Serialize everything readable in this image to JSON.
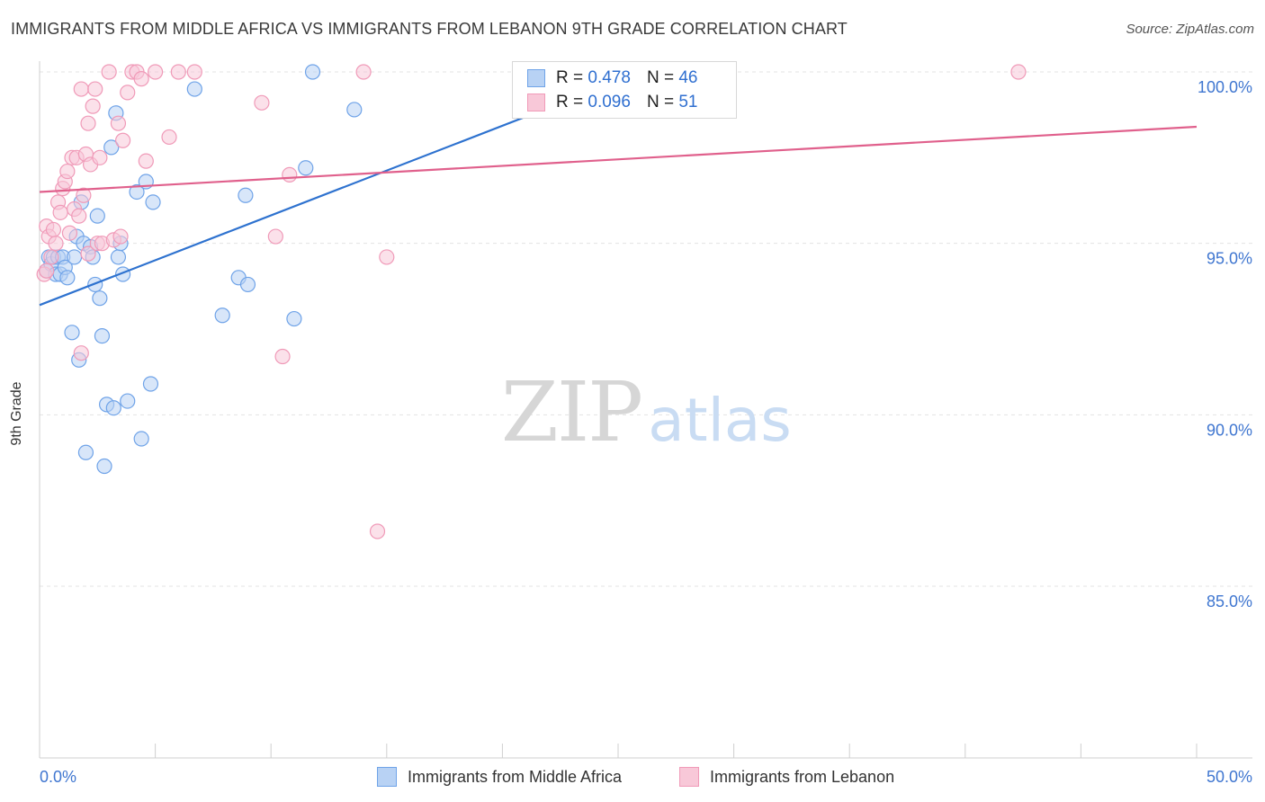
{
  "title": "IMMIGRANTS FROM MIDDLE AFRICA VS IMMIGRANTS FROM LEBANON 9TH GRADE CORRELATION CHART",
  "source": "Source: ZipAtlas.com",
  "watermark": {
    "zip": "ZIP",
    "atlas": "atlas"
  },
  "legend": {
    "r_label": "R =",
    "n_label": "N =",
    "rows": [
      {
        "r": "0.478",
        "n": "46"
      },
      {
        "r": "0.096",
        "n": "51"
      }
    ]
  },
  "chart_data": {
    "type": "scatter",
    "title": "IMMIGRANTS FROM MIDDLE AFRICA VS IMMIGRANTS FROM LEBANON 9TH GRADE CORRELATION CHART",
    "xlabel": "",
    "ylabel": "9th Grade",
    "xlim": [
      0,
      50
    ],
    "ylim": [
      80.5,
      100.8
    ],
    "x_tick_labels": [
      "0.0%",
      "50.0%"
    ],
    "y_ticks": [
      {
        "value": 100,
        "label": "100.0%"
      },
      {
        "value": 95,
        "label": "95.0%"
      },
      {
        "value": 90,
        "label": "90.0%"
      },
      {
        "value": 85,
        "label": "85.0%"
      }
    ],
    "grid": true,
    "legend_position": "bottom",
    "series": [
      {
        "name": "Immigrants from Middle Africa",
        "color": "#6fa3e8",
        "line_color": "#2e72cf",
        "fill": "#b8d2f4",
        "trend": {
          "x0": 0,
          "y0": 93.2,
          "x1": 26,
          "y1": 100.0
        },
        "points": [
          [
            0.3,
            94.2
          ],
          [
            0.4,
            94.6
          ],
          [
            0.5,
            94.4
          ],
          [
            0.6,
            94.6
          ],
          [
            0.7,
            94.1
          ],
          [
            0.8,
            94.6
          ],
          [
            0.9,
            94.1
          ],
          [
            1.0,
            94.6
          ],
          [
            1.1,
            94.3
          ],
          [
            1.2,
            94.0
          ],
          [
            1.4,
            92.4
          ],
          [
            1.5,
            94.6
          ],
          [
            1.6,
            95.2
          ],
          [
            1.8,
            96.2
          ],
          [
            1.7,
            91.6
          ],
          [
            1.9,
            95.0
          ],
          [
            2.0,
            88.9
          ],
          [
            2.2,
            94.9
          ],
          [
            2.3,
            94.6
          ],
          [
            2.4,
            93.8
          ],
          [
            2.5,
            95.8
          ],
          [
            2.6,
            93.4
          ],
          [
            2.7,
            92.3
          ],
          [
            2.8,
            88.5
          ],
          [
            2.9,
            90.3
          ],
          [
            3.1,
            97.8
          ],
          [
            3.2,
            90.2
          ],
          [
            3.3,
            98.8
          ],
          [
            3.4,
            94.6
          ],
          [
            3.5,
            95.0
          ],
          [
            3.6,
            94.1
          ],
          [
            3.8,
            90.4
          ],
          [
            4.2,
            96.5
          ],
          [
            4.4,
            89.3
          ],
          [
            4.6,
            96.8
          ],
          [
            4.8,
            90.9
          ],
          [
            4.9,
            96.2
          ],
          [
            6.7,
            99.5
          ],
          [
            7.9,
            92.9
          ],
          [
            8.6,
            94.0
          ],
          [
            8.9,
            96.4
          ],
          [
            9.0,
            93.8
          ],
          [
            11.0,
            92.8
          ],
          [
            11.5,
            97.2
          ],
          [
            11.8,
            100.0
          ],
          [
            13.6,
            98.9
          ]
        ]
      },
      {
        "name": "Immigrants from Lebanon",
        "color": "#f09ab8",
        "line_color": "#e0608c",
        "fill": "#f8c8d8",
        "trend": {
          "x0": 0,
          "y0": 96.5,
          "x1": 50,
          "y1": 98.4
        },
        "points": [
          [
            0.2,
            94.1
          ],
          [
            0.3,
            95.5
          ],
          [
            0.4,
            95.2
          ],
          [
            0.5,
            94.6
          ],
          [
            0.6,
            95.4
          ],
          [
            0.7,
            95.0
          ],
          [
            0.8,
            96.2
          ],
          [
            0.9,
            95.9
          ],
          [
            1.0,
            96.6
          ],
          [
            1.1,
            96.8
          ],
          [
            1.2,
            97.1
          ],
          [
            1.3,
            95.3
          ],
          [
            1.4,
            97.5
          ],
          [
            1.5,
            96.0
          ],
          [
            1.6,
            97.5
          ],
          [
            1.7,
            95.8
          ],
          [
            1.8,
            99.5
          ],
          [
            1.9,
            96.4
          ],
          [
            2.0,
            97.6
          ],
          [
            2.1,
            94.7
          ],
          [
            2.2,
            97.3
          ],
          [
            2.3,
            99.0
          ],
          [
            2.4,
            99.5
          ],
          [
            2.1,
            98.5
          ],
          [
            2.5,
            95.0
          ],
          [
            2.6,
            97.5
          ],
          [
            1.8,
            91.8
          ],
          [
            2.7,
            95.0
          ],
          [
            3.0,
            100.0
          ],
          [
            3.2,
            95.1
          ],
          [
            3.4,
            98.5
          ],
          [
            3.5,
            95.2
          ],
          [
            3.6,
            98.0
          ],
          [
            3.8,
            99.4
          ],
          [
            4.0,
            100.0
          ],
          [
            4.2,
            100.0
          ],
          [
            4.4,
            99.8
          ],
          [
            4.6,
            97.4
          ],
          [
            5.0,
            100.0
          ],
          [
            5.6,
            98.1
          ],
          [
            6.0,
            100.0
          ],
          [
            6.7,
            100.0
          ],
          [
            9.6,
            99.1
          ],
          [
            10.2,
            95.2
          ],
          [
            10.5,
            91.7
          ],
          [
            10.8,
            97.0
          ],
          [
            14.0,
            100.0
          ],
          [
            14.6,
            86.6
          ],
          [
            15.0,
            94.6
          ],
          [
            42.3,
            100.0
          ],
          [
            0.3,
            94.2
          ]
        ]
      }
    ]
  }
}
